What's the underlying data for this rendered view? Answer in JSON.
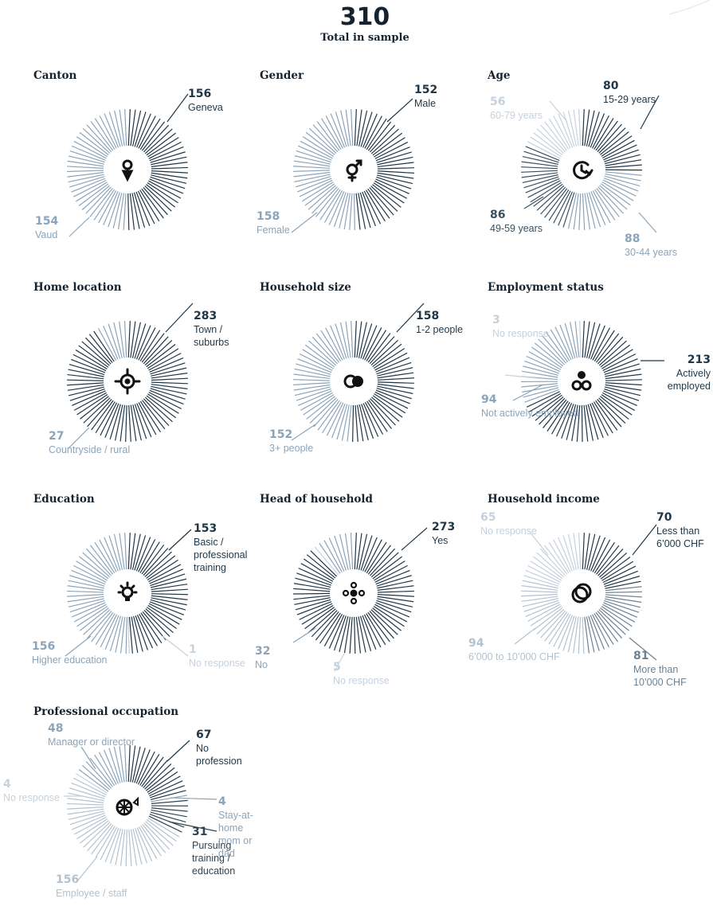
{
  "total": {
    "value": "310",
    "label": "Total in sample"
  },
  "chart_data": [
    {
      "type": "radial",
      "title": "Canton",
      "icon": "location-pin-icon",
      "segments": [
        {
          "value": 156,
          "label": "Geneva",
          "color": "#1f3646"
        },
        {
          "value": 154,
          "label": "Vaud",
          "color": "#8ba4b9"
        }
      ]
    },
    {
      "type": "radial",
      "title": "Gender",
      "icon": "gender-icon",
      "segments": [
        {
          "value": 152,
          "label": "Male",
          "color": "#1f3646"
        },
        {
          "value": 158,
          "label": "Female",
          "color": "#8ba4b9"
        }
      ]
    },
    {
      "type": "radial",
      "title": "Age",
      "icon": "clock-arrow-icon",
      "segments": [
        {
          "value": 80,
          "label": "15-29 years",
          "color": "#1f3646"
        },
        {
          "value": 88,
          "label": "30-44 years",
          "color": "#8ba4b9"
        },
        {
          "value": 86,
          "label": "49-59 years",
          "color": "#3a5060"
        },
        {
          "value": 56,
          "label": "60-79 years",
          "color": "#c5d1dc"
        }
      ]
    },
    {
      "type": "radial",
      "title": "Home location",
      "icon": "crosshair-icon",
      "segments": [
        {
          "value": 283,
          "label": "Town / suburbs",
          "color": "#1f3646"
        },
        {
          "value": 27,
          "label": "Countryside / rural",
          "color": "#8ba4b9"
        }
      ]
    },
    {
      "type": "radial",
      "title": "Household size",
      "icon": "overlapping-circles-icon",
      "segments": [
        {
          "value": 158,
          "label": "1-2 people",
          "color": "#1f3646"
        },
        {
          "value": 152,
          "label": "3+ people",
          "color": "#8ba4b9"
        }
      ]
    },
    {
      "type": "radial",
      "title": "Employment status",
      "icon": "three-circles-icon",
      "segments": [
        {
          "value": 213,
          "label": "Actively employed",
          "color": "#1f3646"
        },
        {
          "value": 94,
          "label": "Not actively employed",
          "color": "#8ba4b9"
        },
        {
          "value": 3,
          "label": "No response",
          "color": "#c5d1dc"
        }
      ]
    },
    {
      "type": "radial",
      "title": "Education",
      "icon": "lightbulb-icon",
      "segments": [
        {
          "value": 153,
          "label": "Basic / professional training",
          "color": "#1f3646"
        },
        {
          "value": 1,
          "label": "No response",
          "color": "#c5d1dc"
        },
        {
          "value": 156,
          "label": "Higher education",
          "color": "#8ba4b9"
        }
      ]
    },
    {
      "type": "radial",
      "title": "Head of household",
      "icon": "flower-circles-icon",
      "segments": [
        {
          "value": 273,
          "label": "Yes",
          "color": "#1f3646"
        },
        {
          "value": 5,
          "label": "No response",
          "color": "#c5d1dc"
        },
        {
          "value": 32,
          "label": "No",
          "color": "#8ba4b9"
        }
      ]
    },
    {
      "type": "radial",
      "title": "Household income",
      "icon": "stacked-rings-icon",
      "segments": [
        {
          "value": 70,
          "label": "Less than 6’000 CHF",
          "color": "#1f3646"
        },
        {
          "value": 81,
          "label": "More than 10’000 CHF",
          "color": "#6b8294"
        },
        {
          "value": 94,
          "label": "6’000 to 10’000 CHF",
          "color": "#b3c2cf"
        },
        {
          "value": 65,
          "label": "No response",
          "color": "#c5d1dc"
        }
      ]
    },
    {
      "type": "radial",
      "title": "Professional occupation",
      "icon": "wheel-icon",
      "segments": [
        {
          "value": 67,
          "label": "No profession",
          "color": "#1f3646"
        },
        {
          "value": 4,
          "label": "Stay-at-home mom or dad",
          "color": "#8ba4b9"
        },
        {
          "value": 31,
          "label": "Pursuing training / education",
          "color": "#2f4453"
        },
        {
          "value": 156,
          "label": "Employee / staff",
          "color": "#b3c2cf"
        },
        {
          "value": 4,
          "label": "No response",
          "color": "#c5d1dc"
        },
        {
          "value": 48,
          "label": "Manager or director",
          "color": "#8ba4b9"
        }
      ]
    }
  ]
}
